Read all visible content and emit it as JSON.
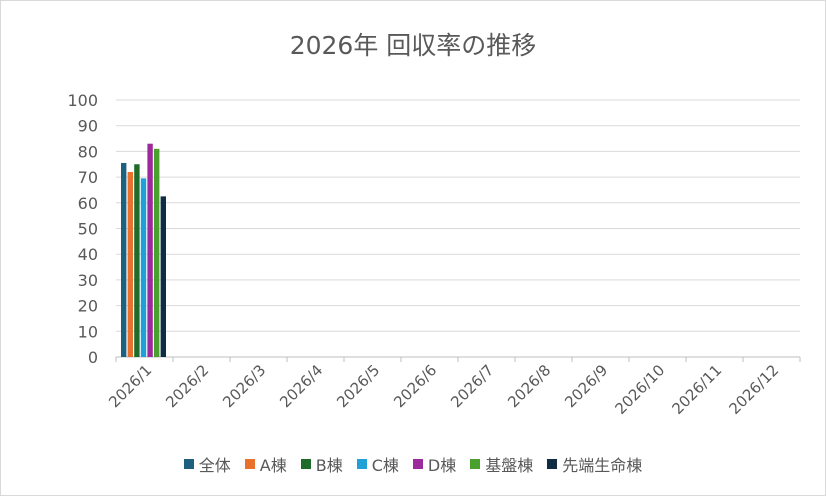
{
  "chart_data": {
    "type": "bar",
    "title": "2026年 回収率の推移",
    "xlabel": "",
    "ylabel": "",
    "ylim": [
      0,
      100
    ],
    "yticks": [
      0,
      10,
      20,
      30,
      40,
      50,
      60,
      70,
      80,
      90,
      100
    ],
    "grid": true,
    "legend_position": "bottom",
    "categories": [
      "2026/1",
      "2026/2",
      "2026/3",
      "2026/4",
      "2026/5",
      "2026/6",
      "2026/7",
      "2026/8",
      "2026/9",
      "2026/10",
      "2026/11",
      "2026/12"
    ],
    "series": [
      {
        "name": "全体",
        "color": "#1f5f7f",
        "values": [
          75.5,
          null,
          null,
          null,
          null,
          null,
          null,
          null,
          null,
          null,
          null,
          null
        ]
      },
      {
        "name": "A棟",
        "color": "#e8712e",
        "values": [
          72,
          null,
          null,
          null,
          null,
          null,
          null,
          null,
          null,
          null,
          null,
          null
        ]
      },
      {
        "name": "B棟",
        "color": "#1e6b2a",
        "values": [
          75,
          null,
          null,
          null,
          null,
          null,
          null,
          null,
          null,
          null,
          null,
          null
        ]
      },
      {
        "name": "C棟",
        "color": "#1fa0d8",
        "values": [
          69.5,
          null,
          null,
          null,
          null,
          null,
          null,
          null,
          null,
          null,
          null,
          null
        ]
      },
      {
        "name": "D棟",
        "color": "#9c2a9c",
        "values": [
          83,
          null,
          null,
          null,
          null,
          null,
          null,
          null,
          null,
          null,
          null,
          null
        ]
      },
      {
        "name": "基盤棟",
        "color": "#4aa02c",
        "values": [
          81,
          null,
          null,
          null,
          null,
          null,
          null,
          null,
          null,
          null,
          null,
          null
        ]
      },
      {
        "name": "先端生命棟",
        "color": "#0d2d44",
        "values": [
          62.5,
          null,
          null,
          null,
          null,
          null,
          null,
          null,
          null,
          null,
          null,
          null
        ]
      }
    ]
  }
}
